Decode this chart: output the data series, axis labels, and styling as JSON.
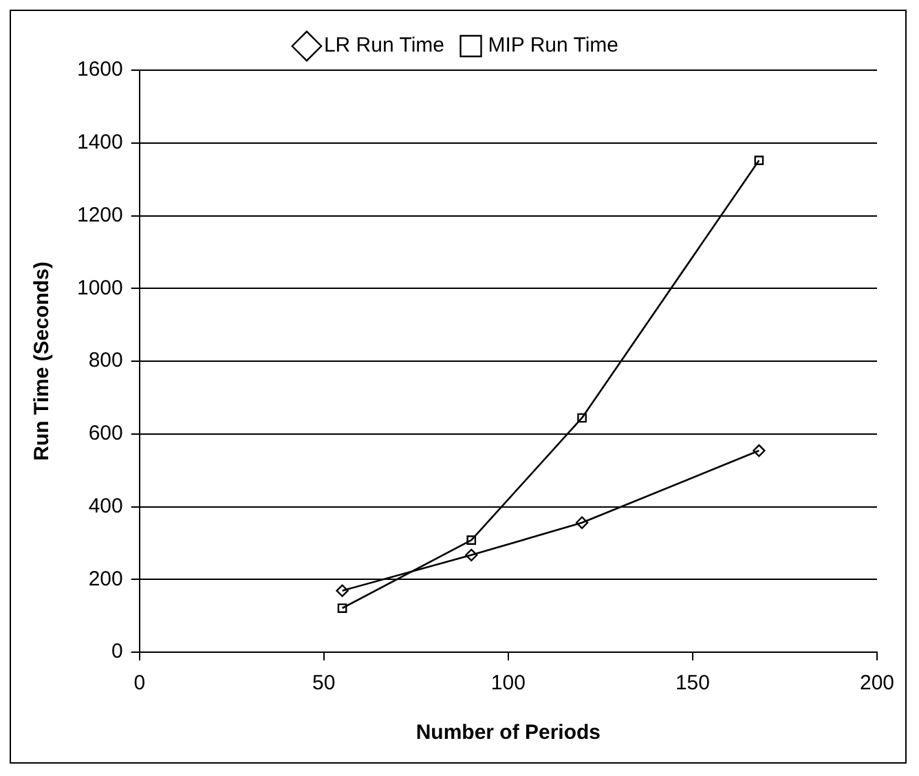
{
  "chart_data": {
    "type": "line",
    "xlabel": "Number of Periods",
    "ylabel": "Run Time (Seconds)",
    "x": [
      55,
      90,
      120,
      168
    ],
    "series": [
      {
        "name": "LR Run Time",
        "color": "#000000",
        "values": [
          169,
          267,
          356,
          554
        ],
        "marker": "diamond"
      },
      {
        "name": "MIP Run Time",
        "color": "#000000",
        "values": [
          121,
          308,
          644,
          1352
        ],
        "marker": "square"
      }
    ],
    "xlim": [
      0,
      200
    ],
    "xticks": [
      0,
      50,
      100,
      150,
      200
    ],
    "ylim": [
      0,
      1600
    ],
    "yticks": [
      0,
      200,
      400,
      600,
      800,
      1000,
      1200,
      1400,
      1600
    ],
    "grid": "y",
    "legend": "top",
    "line_style": "solid"
  }
}
